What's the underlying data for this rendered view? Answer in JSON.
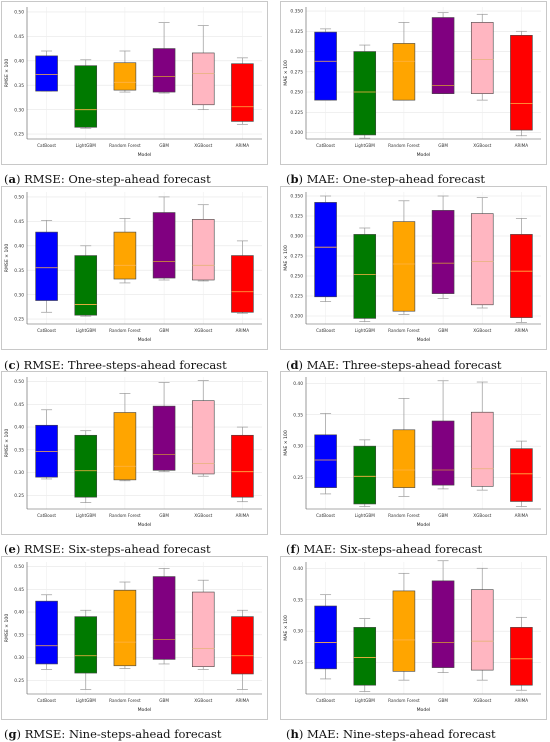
{
  "models": [
    "CatBoost",
    "LightGBM",
    "Random Forest",
    "GBM",
    "XGBoost",
    "ARIMA"
  ],
  "colors": [
    "#0000ff",
    "#007a00",
    "#ffa500",
    "#800080",
    "#ffb6c1",
    "#ff0000"
  ],
  "panels": [
    {
      "letter": "a",
      "caption": "RMSE: One-step-ahead forecast",
      "chart_data": {
        "type": "box",
        "xlabel": "Model",
        "ylabel": "RMSE × 100",
        "ylim": [
          0.24,
          0.51
        ],
        "yticks": [
          "0.25",
          "0.30",
          "0.35",
          "0.40",
          "0.45",
          "0.50"
        ],
        "boxes": [
          {
            "whisker_low": 0.338,
            "q1": 0.338,
            "median": 0.372,
            "q3": 0.41,
            "whisker_high": 0.42
          },
          {
            "whisker_low": 0.262,
            "q1": 0.264,
            "median": 0.3,
            "q3": 0.39,
            "whisker_high": 0.402
          },
          {
            "whisker_low": 0.336,
            "q1": 0.34,
            "median": 0.356,
            "q3": 0.396,
            "whisker_high": 0.42
          },
          {
            "whisker_low": 0.334,
            "q1": 0.336,
            "median": 0.368,
            "q3": 0.425,
            "whisker_high": 0.478
          },
          {
            "whisker_low": 0.3,
            "q1": 0.31,
            "median": 0.374,
            "q3": 0.416,
            "whisker_high": 0.472
          },
          {
            "whisker_low": 0.27,
            "q1": 0.276,
            "median": 0.306,
            "q3": 0.394,
            "whisker_high": 0.406
          }
        ]
      }
    },
    {
      "letter": "b",
      "caption": "MAE: One-step-ahead forecast",
      "chart_data": {
        "type": "box",
        "xlabel": "Model",
        "ylabel": "MAE × 100",
        "ylim": [
          0.192,
          0.355
        ],
        "yticks": [
          "0.200",
          "0.225",
          "0.250",
          "0.275",
          "0.300",
          "0.325",
          "0.350"
        ],
        "boxes": [
          {
            "whisker_low": 0.24,
            "q1": 0.24,
            "median": 0.288,
            "q3": 0.324,
            "whisker_high": 0.328
          },
          {
            "whisker_low": 0.193,
            "q1": 0.197,
            "median": 0.25,
            "q3": 0.3,
            "whisker_high": 0.308
          },
          {
            "whisker_low": 0.24,
            "q1": 0.24,
            "median": 0.288,
            "q3": 0.31,
            "whisker_high": 0.336
          },
          {
            "whisker_low": 0.248,
            "q1": 0.248,
            "median": 0.258,
            "q3": 0.342,
            "whisker_high": 0.348
          },
          {
            "whisker_low": 0.24,
            "q1": 0.248,
            "median": 0.29,
            "q3": 0.336,
            "whisker_high": 0.346
          },
          {
            "whisker_low": 0.196,
            "q1": 0.203,
            "median": 0.236,
            "q3": 0.32,
            "whisker_high": 0.325
          }
        ]
      }
    },
    {
      "letter": "c",
      "caption": "RMSE: Three-steps-ahead forecast",
      "chart_data": {
        "type": "box",
        "xlabel": "Model",
        "ylabel": "RMSE × 100",
        "ylim": [
          0.24,
          0.51
        ],
        "yticks": [
          "0.25",
          "0.30",
          "0.35",
          "0.40",
          "0.45",
          "0.50"
        ],
        "boxes": [
          {
            "whisker_low": 0.264,
            "q1": 0.288,
            "median": 0.355,
            "q3": 0.428,
            "whisker_high": 0.452
          },
          {
            "whisker_low": 0.256,
            "q1": 0.258,
            "median": 0.28,
            "q3": 0.38,
            "whisker_high": 0.4
          },
          {
            "whisker_low": 0.324,
            "q1": 0.332,
            "median": 0.36,
            "q3": 0.428,
            "whisker_high": 0.456
          },
          {
            "whisker_low": 0.33,
            "q1": 0.334,
            "median": 0.368,
            "q3": 0.468,
            "whisker_high": 0.5
          },
          {
            "whisker_low": 0.328,
            "q1": 0.33,
            "median": 0.36,
            "q3": 0.454,
            "whisker_high": 0.484
          },
          {
            "whisker_low": 0.262,
            "q1": 0.264,
            "median": 0.306,
            "q3": 0.38,
            "whisker_high": 0.41
          }
        ]
      }
    },
    {
      "letter": "d",
      "caption": "MAE: Three-steps-ahead forecast",
      "chart_data": {
        "type": "box",
        "xlabel": "Model",
        "ylabel": "MAE × 100",
        "ylim": [
          0.19,
          0.355
        ],
        "yticks": [
          "0.200",
          "0.225",
          "0.250",
          "0.275",
          "0.300",
          "0.325",
          "0.350"
        ],
        "boxes": [
          {
            "whisker_low": 0.218,
            "q1": 0.224,
            "median": 0.286,
            "q3": 0.342,
            "whisker_high": 0.35
          },
          {
            "whisker_low": 0.193,
            "q1": 0.197,
            "median": 0.252,
            "q3": 0.302,
            "whisker_high": 0.31
          },
          {
            "whisker_low": 0.202,
            "q1": 0.206,
            "median": 0.265,
            "q3": 0.318,
            "whisker_high": 0.344
          },
          {
            "whisker_low": 0.222,
            "q1": 0.228,
            "median": 0.266,
            "q3": 0.332,
            "whisker_high": 0.35
          },
          {
            "whisker_low": 0.21,
            "q1": 0.214,
            "median": 0.268,
            "q3": 0.328,
            "whisker_high": 0.348
          },
          {
            "whisker_low": 0.192,
            "q1": 0.198,
            "median": 0.256,
            "q3": 0.302,
            "whisker_high": 0.322
          }
        ]
      }
    },
    {
      "letter": "e",
      "caption": "RMSE: Six-steps-ahead forecast",
      "chart_data": {
        "type": "box",
        "xlabel": "Model",
        "ylabel": "RMSE × 100",
        "ylim": [
          0.22,
          0.51
        ],
        "yticks": [
          "0.25",
          "0.30",
          "0.35",
          "0.40",
          "0.45",
          "0.50"
        ],
        "boxes": [
          {
            "whisker_low": 0.286,
            "q1": 0.29,
            "median": 0.346,
            "q3": 0.404,
            "whisker_high": 0.438
          },
          {
            "whisker_low": 0.234,
            "q1": 0.246,
            "median": 0.304,
            "q3": 0.382,
            "whisker_high": 0.392
          },
          {
            "whisker_low": 0.282,
            "q1": 0.284,
            "median": 0.314,
            "q3": 0.432,
            "whisker_high": 0.474
          },
          {
            "whisker_low": 0.302,
            "q1": 0.305,
            "median": 0.34,
            "q3": 0.446,
            "whisker_high": 0.498
          },
          {
            "whisker_low": 0.292,
            "q1": 0.297,
            "median": 0.32,
            "q3": 0.458,
            "whisker_high": 0.502
          },
          {
            "whisker_low": 0.236,
            "q1": 0.246,
            "median": 0.302,
            "q3": 0.382,
            "whisker_high": 0.4
          }
        ]
      }
    },
    {
      "letter": "f",
      "caption": "MAE: Six-steps-ahead forecast",
      "chart_data": {
        "type": "box",
        "xlabel": "Model",
        "ylabel": "MAE × 100",
        "ylim": [
          0.2,
          0.41
        ],
        "yticks": [
          "0.25",
          "0.30",
          "0.35",
          "0.40"
        ],
        "boxes": [
          {
            "whisker_low": 0.224,
            "q1": 0.234,
            "median": 0.278,
            "q3": 0.318,
            "whisker_high": 0.352
          },
          {
            "whisker_low": 0.204,
            "q1": 0.208,
            "median": 0.252,
            "q3": 0.3,
            "whisker_high": 0.31
          },
          {
            "whisker_low": 0.22,
            "q1": 0.234,
            "median": 0.262,
            "q3": 0.326,
            "whisker_high": 0.376
          },
          {
            "whisker_low": 0.232,
            "q1": 0.238,
            "median": 0.262,
            "q3": 0.34,
            "whisker_high": 0.404
          },
          {
            "whisker_low": 0.23,
            "q1": 0.236,
            "median": 0.264,
            "q3": 0.354,
            "whisker_high": 0.402
          },
          {
            "whisker_low": 0.204,
            "q1": 0.212,
            "median": 0.256,
            "q3": 0.296,
            "whisker_high": 0.308
          }
        ]
      }
    },
    {
      "letter": "g",
      "caption": "RMSE: Nine-steps-ahead forecast",
      "chart_data": {
        "type": "box",
        "xlabel": "Model",
        "ylabel": "RMSE × 100",
        "ylim": [
          0.22,
          0.51
        ],
        "yticks": [
          "0.25",
          "0.30",
          "0.35",
          "0.40",
          "0.45",
          "0.50"
        ],
        "boxes": [
          {
            "whisker_low": 0.274,
            "q1": 0.286,
            "median": 0.326,
            "q3": 0.424,
            "whisker_high": 0.438
          },
          {
            "whisker_low": 0.23,
            "q1": 0.266,
            "median": 0.304,
            "q3": 0.39,
            "whisker_high": 0.404
          },
          {
            "whisker_low": 0.276,
            "q1": 0.282,
            "median": 0.334,
            "q3": 0.448,
            "whisker_high": 0.466
          },
          {
            "whisker_low": 0.286,
            "q1": 0.296,
            "median": 0.34,
            "q3": 0.478,
            "whisker_high": 0.496
          },
          {
            "whisker_low": 0.274,
            "q1": 0.28,
            "median": 0.32,
            "q3": 0.444,
            "whisker_high": 0.47
          },
          {
            "whisker_low": 0.23,
            "q1": 0.264,
            "median": 0.304,
            "q3": 0.39,
            "whisker_high": 0.404
          }
        ]
      }
    },
    {
      "letter": "h",
      "caption": "MAE: Nine-steps-ahead forecast",
      "chart_data": {
        "type": "box",
        "xlabel": "Model",
        "ylabel": "MAE × 100",
        "ylim": [
          0.2,
          0.41
        ],
        "yticks": [
          "0.25",
          "0.30",
          "0.35",
          "0.40"
        ],
        "boxes": [
          {
            "whisker_low": 0.224,
            "q1": 0.24,
            "median": 0.282,
            "q3": 0.34,
            "whisker_high": 0.358
          },
          {
            "whisker_low": 0.204,
            "q1": 0.214,
            "median": 0.258,
            "q3": 0.306,
            "whisker_high": 0.32
          },
          {
            "whisker_low": 0.222,
            "q1": 0.236,
            "median": 0.286,
            "q3": 0.364,
            "whisker_high": 0.392
          },
          {
            "whisker_low": 0.234,
            "q1": 0.242,
            "median": 0.282,
            "q3": 0.38,
            "whisker_high": 0.412
          },
          {
            "whisker_low": 0.222,
            "q1": 0.238,
            "median": 0.284,
            "q3": 0.366,
            "whisker_high": 0.4
          },
          {
            "whisker_low": 0.206,
            "q1": 0.214,
            "median": 0.256,
            "q3": 0.306,
            "whisker_high": 0.322
          }
        ]
      }
    }
  ]
}
